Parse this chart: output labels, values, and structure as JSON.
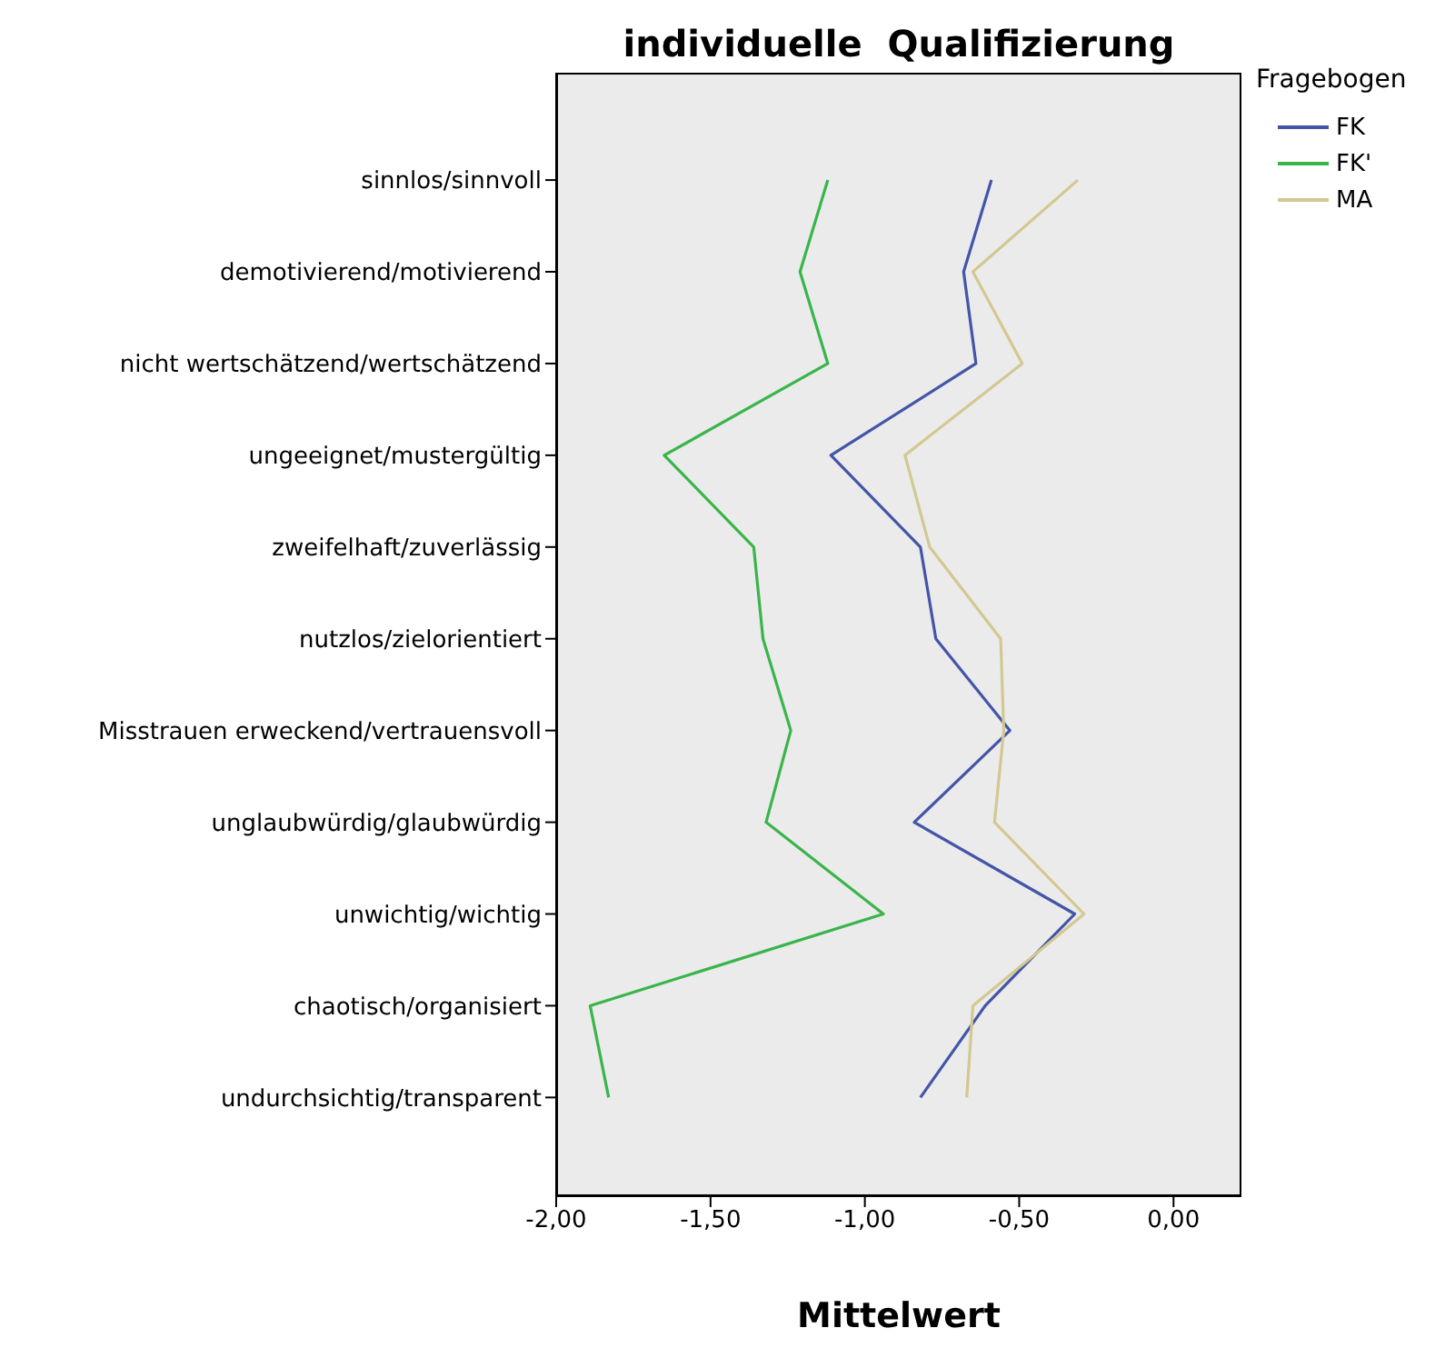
{
  "chart_data": {
    "type": "line",
    "title": "individuelle  Qualifizierung",
    "xlabel": "Mittelwert",
    "legend_title": "Fragebogen",
    "orientation": "horizontal",
    "categories": [
      "sinnlos/sinnvoll",
      "demotivierend/motivierend",
      "nicht wertschätzend/wertschätzend",
      "ungeeignet/mustergültig",
      "zweifelhaft/zuverlässig",
      "nutzlos/zielorientiert",
      "Misstrauen erweckend/vertrauensvoll",
      "unglaubwürdig/glaubwürdig",
      "unwichtig/wichtig",
      "chaotisch/organisiert",
      "undurchsichtig/transparent"
    ],
    "series": [
      {
        "name": "FK",
        "color": "#4355a8",
        "values": [
          -0.59,
          -0.68,
          -0.64,
          -1.11,
          -0.82,
          -0.77,
          -0.53,
          -0.84,
          -0.32,
          -0.61,
          -0.82
        ]
      },
      {
        "name": "FK'",
        "color": "#39b54a",
        "values": [
          -1.12,
          -1.21,
          -1.12,
          -1.65,
          -1.36,
          -1.33,
          -1.24,
          -1.32,
          -0.94,
          -1.89,
          -1.83
        ]
      },
      {
        "name": "MA",
        "color": "#d3c891",
        "values": [
          -0.31,
          -0.65,
          -0.49,
          -0.87,
          -0.79,
          -0.56,
          -0.55,
          -0.58,
          -0.29,
          -0.65,
          -0.67
        ]
      }
    ],
    "xlim": [
      -2,
      0.22
    ],
    "xticks": [
      {
        "value": -2,
        "label": "-2,00"
      },
      {
        "value": -1.5,
        "label": "-1,50"
      },
      {
        "value": -1,
        "label": "-1,00"
      },
      {
        "value": -0.5,
        "label": "-0,50"
      },
      {
        "value": 0,
        "label": "0,00"
      }
    ],
    "legend": "top right",
    "marker": "none",
    "line_style": "solid"
  }
}
